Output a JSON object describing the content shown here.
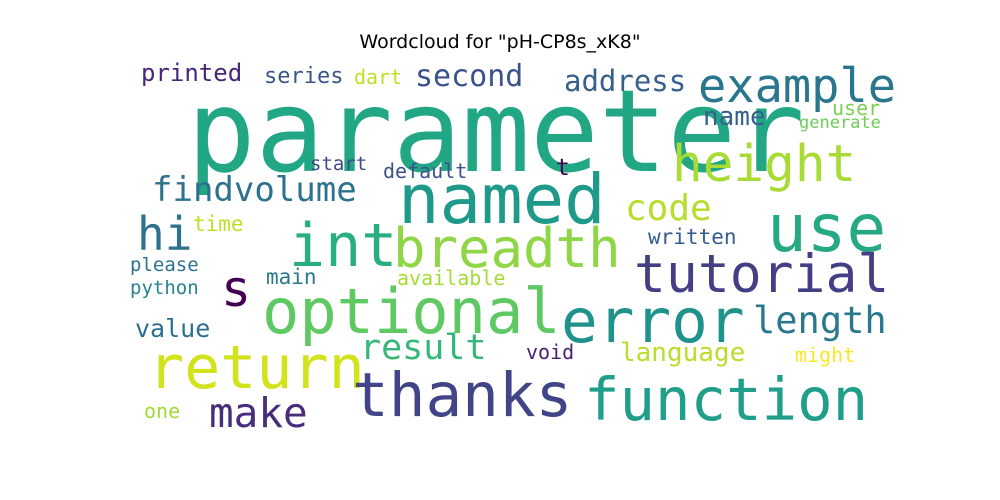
{
  "title": "Wordcloud for \"pH-CP8s_xK8\"",
  "words": [
    {
      "text": "parameter",
      "color": "#22a785"
    },
    {
      "text": "named",
      "color": "#1f9a8a"
    },
    {
      "text": "example",
      "color": "#2a768e"
    },
    {
      "text": "height",
      "color": "#a8db34"
    },
    {
      "text": "use",
      "color": "#26a883"
    },
    {
      "text": "int",
      "color": "#28ae80"
    },
    {
      "text": "breadth",
      "color": "#8ed645"
    },
    {
      "text": "tutorial",
      "color": "#433e85"
    },
    {
      "text": "optional",
      "color": "#5ec962"
    },
    {
      "text": "error",
      "color": "#20928c"
    },
    {
      "text": "return",
      "color": "#d2e21b"
    },
    {
      "text": "thanks",
      "color": "#414487"
    },
    {
      "text": "function",
      "color": "#1f9e89"
    },
    {
      "text": "make",
      "color": "#472d7b"
    },
    {
      "text": "findvolume",
      "color": "#2c728e"
    },
    {
      "text": "hi",
      "color": "#2c718e"
    },
    {
      "text": "s",
      "color": "#440154"
    },
    {
      "text": "code",
      "color": "#b5de2b"
    },
    {
      "text": "length",
      "color": "#2a788e"
    },
    {
      "text": "result",
      "color": "#35b779"
    },
    {
      "text": "address",
      "color": "#355f8d"
    },
    {
      "text": "second",
      "color": "#3b528b"
    },
    {
      "text": "printed",
      "color": "#482677"
    },
    {
      "text": "series",
      "color": "#39568c"
    },
    {
      "text": "dart",
      "color": "#c2df23"
    },
    {
      "text": "name",
      "color": "#355f8d"
    },
    {
      "text": "user",
      "color": "#7ad151"
    },
    {
      "text": "generate",
      "color": "#6ccd5a"
    },
    {
      "text": "start",
      "color": "#3e4a89"
    },
    {
      "text": "default",
      "color": "#3b528b"
    },
    {
      "text": "t",
      "color": "#440154"
    },
    {
      "text": "time",
      "color": "#bddf26"
    },
    {
      "text": "written",
      "color": "#365c8d"
    },
    {
      "text": "please",
      "color": "#2c728e"
    },
    {
      "text": "python",
      "color": "#25858e"
    },
    {
      "text": "main",
      "color": "#2a788e"
    },
    {
      "text": "available",
      "color": "#a5db36"
    },
    {
      "text": "value",
      "color": "#2d708e"
    },
    {
      "text": "void",
      "color": "#482173"
    },
    {
      "text": "language",
      "color": "#b8de29"
    },
    {
      "text": "might",
      "color": "#fde725"
    },
    {
      "text": "one",
      "color": "#a0da39"
    }
  ]
}
